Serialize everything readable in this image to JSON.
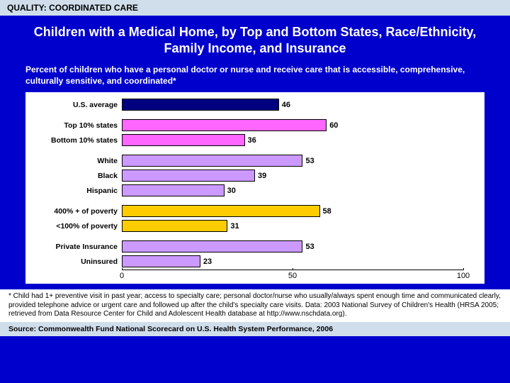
{
  "header": "QUALITY: COORDINATED CARE",
  "title": "Children with a Medical Home, by Top and Bottom States, Race/Ethnicity, Family Income, and Insurance",
  "subtitle": "Percent of children who have a personal doctor or nurse and receive care that is accessible, comprehensive, culturally sensitive, and coordinated*",
  "chart": {
    "type": "bar",
    "xlim": [
      0,
      100
    ],
    "xticks": [
      0,
      50,
      100
    ],
    "background_color": "#ffffff",
    "groups": [
      [
        {
          "label": "U.S. average",
          "value": 46,
          "color": "#000080"
        }
      ],
      [
        {
          "label": "Top 10% states",
          "value": 60,
          "color": "#ff66ff"
        },
        {
          "label": "Bottom 10% states",
          "value": 36,
          "color": "#ff66ff"
        }
      ],
      [
        {
          "label": "White",
          "value": 53,
          "color": "#cc99ff"
        },
        {
          "label": "Black",
          "value": 39,
          "color": "#cc99ff"
        },
        {
          "label": "Hispanic",
          "value": 30,
          "color": "#cc99ff"
        }
      ],
      [
        {
          "label": "400% + of poverty",
          "value": 58,
          "color": "#ffcc00"
        },
        {
          "label": "<100% of poverty",
          "value": 31,
          "color": "#ffcc00"
        }
      ],
      [
        {
          "label": "Private Insurance",
          "value": 53,
          "color": "#cc99ff"
        },
        {
          "label": "Uninsured",
          "value": 23,
          "color": "#cc99ff"
        }
      ]
    ]
  },
  "footnote": "* Child had 1+ preventive visit in past year; access to specialty care; personal doctor/nurse who usually/always spent enough time and communicated clearly, provided telephone advice or urgent care and followed up after the child's specialty care visits. Data: 2003 National Survey of Children's Health (HRSA 2005; retrieved from Data Resource Center for Child and Adolescent Health database at http://www.nschdata.org).",
  "source": "Source: Commonwealth Fund National Scorecard on U.S. Health System Performance, 2006"
}
